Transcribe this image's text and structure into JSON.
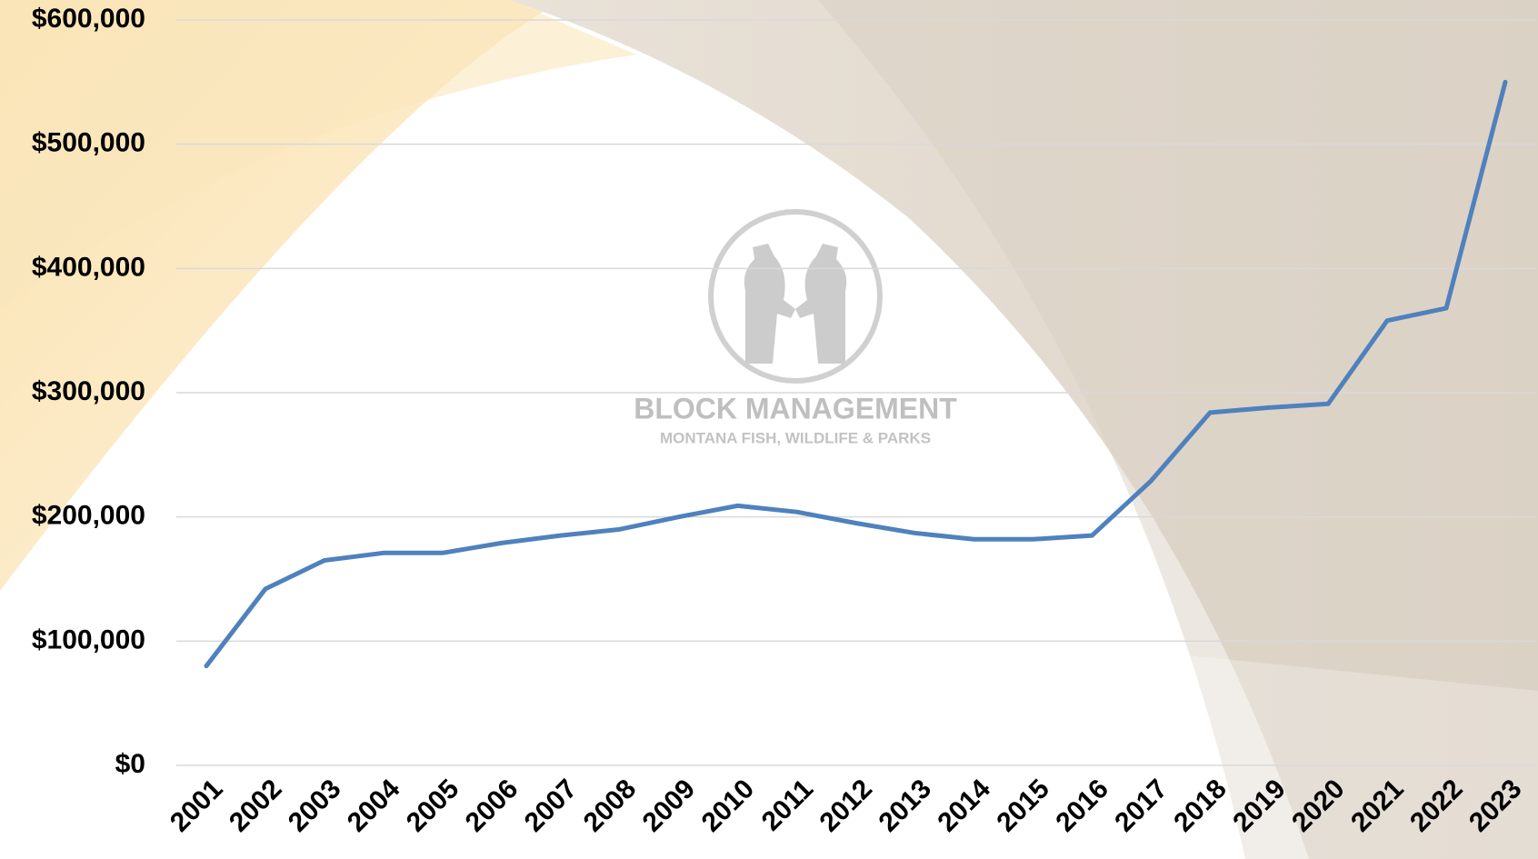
{
  "chart_data": {
    "type": "line",
    "categories": [
      "2001",
      "2002",
      "2003",
      "2004",
      "2005",
      "2006",
      "2007",
      "2008",
      "2009",
      "2010",
      "2011",
      "2012",
      "2013",
      "2014",
      "2015",
      "2016",
      "2017",
      "2018",
      "2019",
      "2020",
      "2021",
      "2022",
      "2023"
    ],
    "series": [
      {
        "color": "#4f81bd",
        "values": [
          80000,
          142000,
          165000,
          171000,
          171000,
          179000,
          185000,
          190000,
          200000,
          209000,
          204000,
          195000,
          187000,
          182000,
          182000,
          185000,
          229000,
          284000,
          288000,
          291000,
          358000,
          368000,
          550000
        ]
      }
    ],
    "ylim": [
      0,
      600000
    ],
    "yticks": [
      {
        "value": 0,
        "label": "$0"
      },
      {
        "value": 100000,
        "label": "$100,000"
      },
      {
        "value": 200000,
        "label": "$200,000"
      },
      {
        "value": 300000,
        "label": "$300,000"
      },
      {
        "value": 400000,
        "label": "$400,000"
      },
      {
        "value": 500000,
        "label": "$500,000"
      },
      {
        "value": 600000,
        "label": "$600,000"
      }
    ],
    "grid": true
  },
  "watermark": {
    "title": "BLOCK MANAGEMENT",
    "subtitle": "MONTANA FISH, WILDLIFE & PARKS"
  }
}
